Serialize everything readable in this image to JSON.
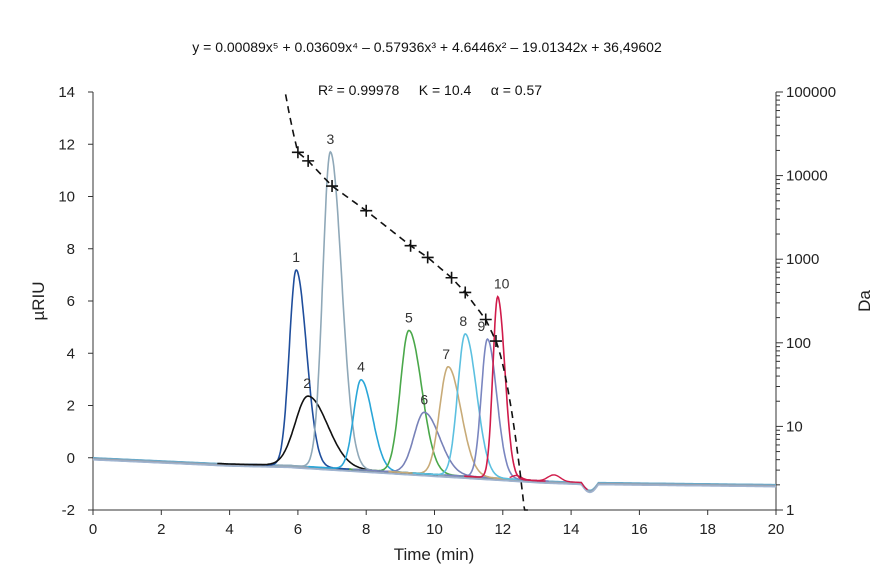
{
  "chart_data": {
    "type": "line",
    "equation": "y = 0.00089x⁵ + 0.03609x⁴ – 0.57936x³ + 4.6446x² – 19.01342x + 36,49602",
    "stats": "R² = 0.99978     K = 10.4     α = 0.57",
    "xlabel": "Time (min)",
    "ylabel": "µRIU",
    "y2label": "Da",
    "xlim": [
      0,
      20
    ],
    "ylim": [
      -2,
      14
    ],
    "y2lim": [
      1,
      100000
    ],
    "y2scale": "log",
    "xticks": [
      "0",
      "2",
      "4",
      "6",
      "8",
      "10",
      "12",
      "14",
      "16",
      "18",
      "20"
    ],
    "yticks": [
      "-2",
      "0",
      "2",
      "4",
      "6",
      "8",
      "10",
      "12",
      "14"
    ],
    "y2ticks": [
      "1",
      "10",
      "100",
      "1000",
      "10000",
      "100000"
    ],
    "peaks": [
      {
        "label": "1",
        "time": 5.95,
        "height": 7.5,
        "width": 0.2,
        "color": "#1f4e9c"
      },
      {
        "label": "2",
        "time": 6.3,
        "height": 2.7,
        "width": 0.38,
        "color": "#111111"
      },
      {
        "label": "3",
        "time": 6.95,
        "height": 12.1,
        "width": 0.22,
        "color": "#8fa8b8"
      },
      {
        "label": "4",
        "time": 7.85,
        "height": 3.45,
        "width": 0.22,
        "color": "#2aa6d8"
      },
      {
        "label": "5",
        "time": 9.25,
        "height": 5.45,
        "width": 0.25,
        "color": "#4aa84a"
      },
      {
        "label": "6",
        "time": 9.7,
        "height": 2.35,
        "width": 0.3,
        "color": "#7882b8"
      },
      {
        "label": "7",
        "time": 10.4,
        "height": 4.15,
        "width": 0.25,
        "color": "#c8ab78"
      },
      {
        "label": "8",
        "time": 10.9,
        "height": 5.45,
        "width": 0.22,
        "color": "#5cc0e0"
      },
      {
        "label": "9",
        "time": 11.55,
        "height": 5.3,
        "width": 0.18,
        "color": "#7a86c0"
      },
      {
        "label": "10",
        "time": 11.85,
        "height": 6.95,
        "width": 0.14,
        "color": "#d01b4a"
      }
    ],
    "calibration_points": {
      "x": [
        6.0,
        6.3,
        7.0,
        8.0,
        9.3,
        9.8,
        10.5,
        10.9,
        11.5,
        11.8
      ],
      "y": [
        19000,
        15000,
        7500,
        3800,
        1450,
        1050,
        600,
        400,
        190,
        105
      ]
    },
    "calibration_fit_x_range": [
      5.5,
      12.85
    ],
    "colors": {
      "axis": "#333333",
      "fit_line": "#111111",
      "marker": "#111111"
    }
  }
}
